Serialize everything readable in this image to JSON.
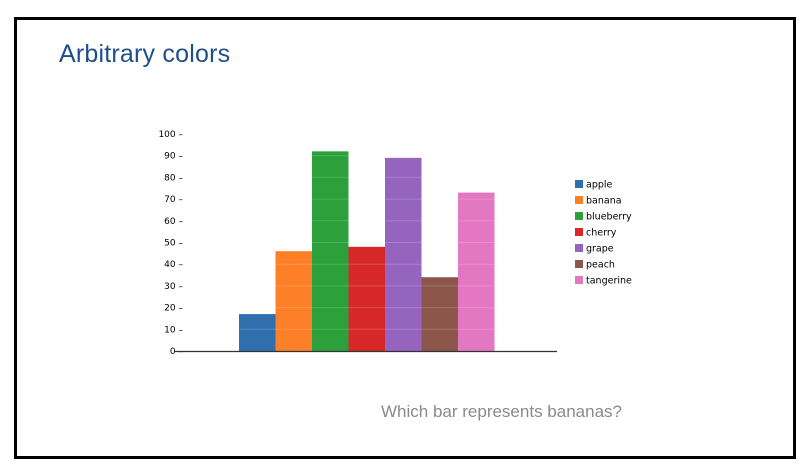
{
  "slide": {
    "title": "Arbitrary colors",
    "question": "Which bar represents bananas?"
  },
  "chart_data": {
    "type": "bar",
    "categories": [
      "apple",
      "banana",
      "blueberry",
      "cherry",
      "grape",
      "peach",
      "tangerine"
    ],
    "values": [
      17,
      46,
      92,
      48,
      89,
      34,
      73
    ],
    "colors": [
      "#2f6fae",
      "#fd7f28",
      "#2ca03a",
      "#d62828",
      "#9564bf",
      "#8c564b",
      "#e377c2"
    ],
    "ylim": [
      0,
      100
    ],
    "yticks": [
      0,
      10,
      20,
      30,
      40,
      50,
      60,
      70,
      80,
      90,
      100
    ],
    "tick_suffix": " –",
    "grid": false,
    "legend": "right",
    "title": "",
    "xlabel": "",
    "ylabel": ""
  }
}
